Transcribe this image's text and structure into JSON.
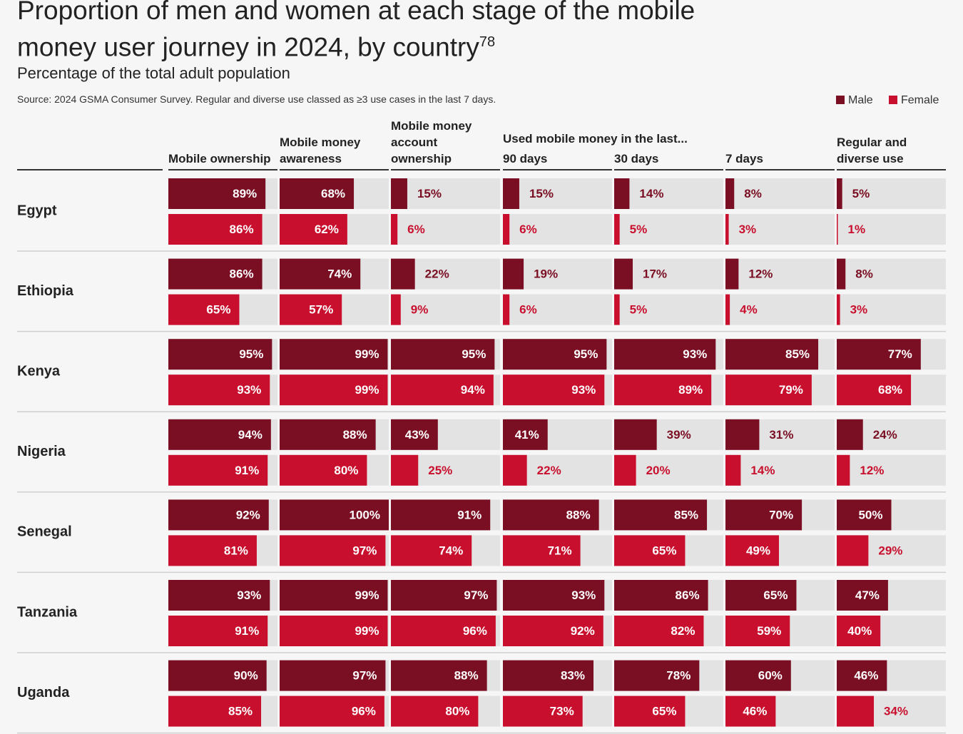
{
  "chart_data": {
    "type": "bar",
    "title": "Proportion of men and women at each stage of the mobile money user journey in 2024, by country",
    "title_note": "78",
    "subtitle": "Percentage of the total adult population",
    "source": "Source: 2024 GSMA Consumer Survey. Regular and diverse use classed as ≥3 use cases in the last 7 days.",
    "group_label": "Used mobile money in the last...",
    "columns": [
      "Mobile ownership",
      "Mobile money awareness",
      "Mobile money account ownership",
      "90 days",
      "30 days",
      "7 days",
      "Regular and diverse use"
    ],
    "categories": [
      "Egypt",
      "Ethiopia",
      "Kenya",
      "Nigeria",
      "Senegal",
      "Tanzania",
      "Uganda"
    ],
    "xlim": [
      0,
      100
    ],
    "series": [
      {
        "name": "Male",
        "color": "#7a0e22",
        "values": [
          [
            89,
            68,
            15,
            15,
            14,
            8,
            5
          ],
          [
            86,
            74,
            22,
            19,
            17,
            12,
            8
          ],
          [
            95,
            99,
            95,
            95,
            93,
            85,
            77
          ],
          [
            94,
            88,
            43,
            41,
            39,
            31,
            24
          ],
          [
            92,
            100,
            91,
            88,
            85,
            70,
            50
          ],
          [
            93,
            99,
            97,
            93,
            86,
            65,
            47
          ],
          [
            90,
            97,
            88,
            83,
            78,
            60,
            46
          ]
        ],
        "value_labels": [
          [
            "89%",
            "68%",
            "15%",
            "15%",
            "14%",
            "8%",
            "5%"
          ],
          [
            "86%",
            "74%",
            "22%",
            "19%",
            "17%",
            "12%",
            "8%"
          ],
          [
            "95%",
            "99%",
            "95%",
            "95%",
            "93%",
            "85%",
            "77%"
          ],
          [
            "94%",
            "88%",
            "43%",
            "41%",
            "39%",
            "31%",
            "24%"
          ],
          [
            "92%",
            "100%",
            "91%",
            "88%",
            "85%",
            "70%",
            "50%"
          ],
          [
            "93%",
            "99%",
            "97%",
            "93%",
            "86%",
            "65%",
            "47%"
          ],
          [
            "90%",
            "97%",
            "88%",
            "83%",
            "78%",
            "60%",
            "46%"
          ]
        ]
      },
      {
        "name": "Female",
        "color": "#c8102e",
        "values": [
          [
            86,
            62,
            6,
            6,
            5,
            3,
            1
          ],
          [
            65,
            57,
            9,
            6,
            5,
            4,
            3
          ],
          [
            93,
            99,
            94,
            93,
            89,
            79,
            68
          ],
          [
            91,
            80,
            25,
            22,
            20,
            14,
            12
          ],
          [
            81,
            97,
            74,
            71,
            65,
            49,
            29
          ],
          [
            91,
            99,
            96,
            92,
            82,
            59,
            40
          ],
          [
            85,
            96,
            80,
            73,
            65,
            46,
            34
          ]
        ],
        "value_labels": [
          [
            "86%",
            "62%",
            "6%",
            "6%",
            "5%",
            "3%",
            "1%"
          ],
          [
            "65%",
            "57%",
            "9%",
            "6%",
            "5%",
            "4%",
            "3%"
          ],
          [
            "93%",
            "99%",
            "94%",
            "93%",
            "89%",
            "79%",
            "68%"
          ],
          [
            "91%",
            "80%",
            "25%",
            "22%",
            "20%",
            "14%",
            "12%"
          ],
          [
            "81%",
            "97%",
            "74%",
            "71%",
            "65%",
            "49%",
            "29%"
          ],
          [
            "91%",
            "99%",
            "96%",
            "92%",
            "82%",
            "59%",
            "40%"
          ],
          [
            "85%",
            "96%",
            "80%",
            "73%",
            "65%",
            "46%",
            "34%"
          ]
        ]
      }
    ]
  }
}
